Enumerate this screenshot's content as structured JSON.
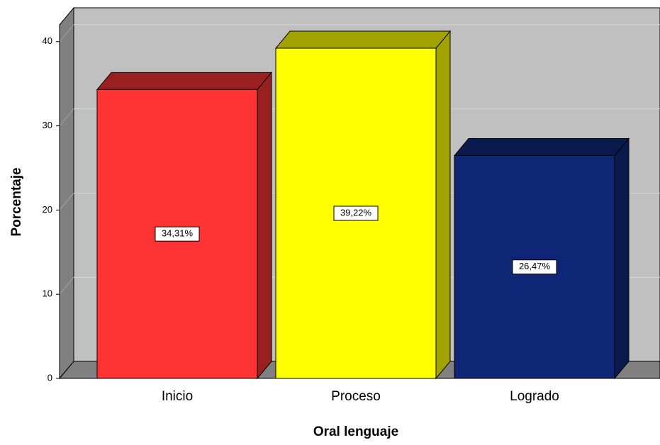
{
  "chart_data": {
    "type": "bar",
    "x_label": "Oral lenguaje",
    "y_label": "Porcentaje",
    "categories": [
      "Inicio",
      "Proceso",
      "Logrado"
    ],
    "values": [
      34.31,
      39.22,
      26.47
    ],
    "value_labels": [
      "34,31%",
      "39,22%",
      "26,47%"
    ],
    "colors": [
      "#ff3333",
      "#ffff00",
      "#0f2677"
    ],
    "side_colors": [
      "#9a1f1f",
      "#a3a300",
      "#0b1a4d"
    ],
    "ylim": [
      0,
      42
    ],
    "yticks": [
      0,
      10,
      20,
      30,
      40
    ],
    "grid": true
  }
}
